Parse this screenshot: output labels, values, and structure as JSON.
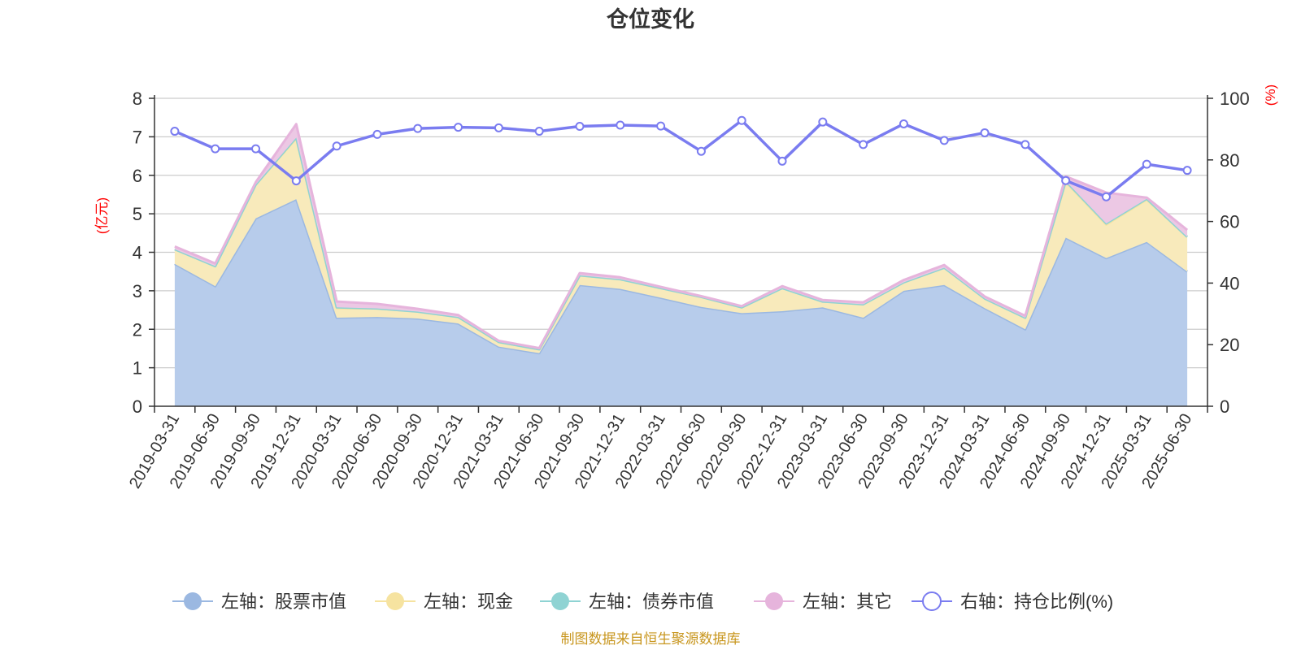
{
  "chart_data": {
    "type": "area",
    "title": "仓位变化",
    "left_unit": "(亿元)",
    "right_unit": "(%)",
    "left_ylim": [
      0,
      8
    ],
    "left_ticks": [
      0,
      1,
      2,
      3,
      4,
      5,
      6,
      7,
      8
    ],
    "right_ylim": [
      0,
      100
    ],
    "right_ticks": [
      0,
      20,
      40,
      60,
      80,
      100
    ],
    "grid": true,
    "legend_position": "bottom",
    "categories": [
      "2019-03-31",
      "2019-06-30",
      "2019-09-30",
      "2019-12-31",
      "2020-03-31",
      "2020-06-30",
      "2020-09-30",
      "2020-12-31",
      "2021-03-31",
      "2021-06-30",
      "2021-09-30",
      "2021-12-31",
      "2022-03-31",
      "2022-06-30",
      "2022-09-30",
      "2022-12-31",
      "2023-03-31",
      "2023-06-30",
      "2023-09-30",
      "2023-12-31",
      "2024-03-31",
      "2024-06-30",
      "2024-09-30",
      "2024-12-31",
      "2025-03-31",
      "2025-06-30"
    ],
    "series": [
      {
        "name": "左轴：股票市值",
        "axis": "left",
        "kind": "area",
        "color": "#9bb8e1",
        "fill": "#b7cceb",
        "values": [
          3.7,
          3.12,
          4.88,
          5.38,
          2.3,
          2.32,
          2.28,
          2.15,
          1.55,
          1.38,
          3.15,
          3.05,
          2.82,
          2.58,
          2.42,
          2.47,
          2.57,
          2.3,
          3.0,
          3.15,
          2.55,
          2.0,
          4.38,
          3.85,
          4.27,
          3.5
        ]
      },
      {
        "name": "左轴：现金",
        "axis": "left",
        "kind": "area",
        "color": "#f6e3a0",
        "fill": "#f8eabb",
        "values": [
          0.38,
          0.52,
          0.88,
          1.58,
          0.25,
          0.22,
          0.18,
          0.17,
          0.12,
          0.1,
          0.25,
          0.25,
          0.25,
          0.26,
          0.15,
          0.6,
          0.15,
          0.35,
          0.22,
          0.45,
          0.25,
          0.3,
          1.45,
          0.87,
          1.1,
          0.9
        ]
      },
      {
        "name": "左轴：债券市值",
        "axis": "left",
        "kind": "area",
        "color": "#8fd3d3",
        "fill": "#a9dcdc",
        "values": [
          0,
          0,
          0,
          0.02,
          0.02,
          0,
          0,
          0,
          0,
          0,
          0,
          0,
          0,
          0,
          0,
          0,
          0,
          0,
          0,
          0,
          0,
          0,
          0.02,
          0.03,
          0.02,
          0
        ]
      },
      {
        "name": "左轴：其它",
        "axis": "left",
        "kind": "area",
        "color": "#e6b4dc",
        "fill": "#ecc8e4",
        "values": [
          0.07,
          0.07,
          0.06,
          0.35,
          0.15,
          0.12,
          0.07,
          0.05,
          0.03,
          0.03,
          0.06,
          0.05,
          0.03,
          0.02,
          0.03,
          0.05,
          0.04,
          0.05,
          0.06,
          0.07,
          0.05,
          0.05,
          0.12,
          0.8,
          0.03,
          0.18
        ]
      },
      {
        "name": "右轴：持仓比例(%)",
        "axis": "right",
        "kind": "line",
        "color": "#7a7cf0",
        "values": [
          89.3,
          83.6,
          83.6,
          73.2,
          84.5,
          88.3,
          90.2,
          90.6,
          90.4,
          89.3,
          90.9,
          91.3,
          91.0,
          82.8,
          92.8,
          79.6,
          92.3,
          85.0,
          91.7,
          86.3,
          88.8,
          85.0,
          73.3,
          68.0,
          78.6,
          76.6
        ]
      }
    ]
  },
  "legend": {
    "items": [
      {
        "label": "左轴：股票市值",
        "color": "#9bb8e1",
        "marker": "filled-circle"
      },
      {
        "label": "左轴：现金",
        "color": "#f6e3a0",
        "marker": "filled-circle"
      },
      {
        "label": "左轴：债券市值",
        "color": "#8fd3d3",
        "marker": "filled-circle"
      },
      {
        "label": "左轴：其它",
        "color": "#e6b4dc",
        "marker": "filled-circle"
      },
      {
        "label": "右轴：持仓比例(%)",
        "color": "#7a7cf0",
        "marker": "hollow-circle"
      }
    ]
  },
  "source": "制图数据来自恒生聚源数据库"
}
